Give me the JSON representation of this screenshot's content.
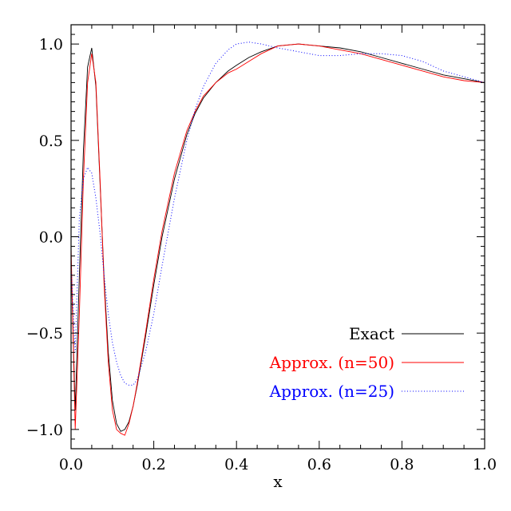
{
  "chart_data": {
    "type": "line",
    "title": "",
    "xlabel": "x",
    "ylabel": "",
    "xlim": [
      0.0,
      1.0
    ],
    "ylim": [
      -1.1,
      1.1
    ],
    "xticks": [
      0.0,
      0.2,
      0.4,
      0.6,
      0.8,
      1.0
    ],
    "xtick_labels": [
      "0.0",
      "0.2",
      "0.4",
      "0.6",
      "0.8",
      "1.0"
    ],
    "yticks": [
      -1.0,
      -0.5,
      0.0,
      0.5,
      1.0
    ],
    "ytick_labels": [
      "−1.0",
      "−0.5",
      "0.0",
      "0.5",
      "1.0"
    ],
    "grid": false,
    "legend_position": "bottom-right",
    "series": [
      {
        "name": "Exact",
        "color": "#000000",
        "style": "solid",
        "x": [
          0.0,
          0.01,
          0.02,
          0.03,
          0.04,
          0.05,
          0.06,
          0.07,
          0.08,
          0.09,
          0.1,
          0.11,
          0.12,
          0.13,
          0.14,
          0.15,
          0.16,
          0.18,
          0.2,
          0.22,
          0.25,
          0.28,
          0.3,
          0.32,
          0.35,
          0.38,
          0.4,
          0.43,
          0.46,
          0.5,
          0.55,
          0.6,
          0.65,
          0.7,
          0.75,
          0.8,
          0.85,
          0.9,
          0.95,
          1.0
        ],
        "y": [
          -0.12,
          -0.9,
          -0.2,
          0.45,
          0.88,
          0.98,
          0.78,
          0.28,
          -0.22,
          -0.6,
          -0.85,
          -0.97,
          -1.01,
          -1.0,
          -0.96,
          -0.88,
          -0.77,
          -0.52,
          -0.25,
          0.0,
          0.3,
          0.53,
          0.64,
          0.72,
          0.8,
          0.86,
          0.89,
          0.93,
          0.96,
          0.99,
          1.0,
          0.99,
          0.98,
          0.96,
          0.93,
          0.9,
          0.87,
          0.84,
          0.82,
          0.8
        ]
      },
      {
        "name": "Approx. (n=50)",
        "color": "#ff0000",
        "style": "solid",
        "x": [
          0.0,
          0.01,
          0.02,
          0.03,
          0.04,
          0.05,
          0.06,
          0.07,
          0.08,
          0.09,
          0.1,
          0.11,
          0.12,
          0.13,
          0.14,
          0.15,
          0.16,
          0.18,
          0.2,
          0.22,
          0.25,
          0.28,
          0.3,
          0.32,
          0.35,
          0.38,
          0.4,
          0.43,
          0.46,
          0.5,
          0.55,
          0.6,
          0.65,
          0.7,
          0.75,
          0.8,
          0.85,
          0.9,
          0.95,
          1.0
        ],
        "y": [
          -0.05,
          -1.0,
          -0.4,
          0.3,
          0.8,
          0.95,
          0.8,
          0.3,
          -0.25,
          -0.65,
          -0.9,
          -1.0,
          -1.02,
          -1.03,
          -0.97,
          -0.88,
          -0.76,
          -0.5,
          -0.22,
          0.03,
          0.33,
          0.55,
          0.65,
          0.73,
          0.8,
          0.85,
          0.87,
          0.91,
          0.95,
          0.99,
          1.0,
          0.99,
          0.97,
          0.95,
          0.92,
          0.89,
          0.86,
          0.83,
          0.81,
          0.8
        ]
      },
      {
        "name": "Approx. (n=25)",
        "color": "#0000ff",
        "style": "dotted",
        "x": [
          0.0,
          0.01,
          0.02,
          0.03,
          0.04,
          0.05,
          0.06,
          0.07,
          0.08,
          0.09,
          0.1,
          0.11,
          0.12,
          0.13,
          0.14,
          0.15,
          0.16,
          0.18,
          0.2,
          0.22,
          0.25,
          0.28,
          0.3,
          0.32,
          0.35,
          0.38,
          0.4,
          0.43,
          0.46,
          0.5,
          0.55,
          0.6,
          0.65,
          0.7,
          0.75,
          0.8,
          0.85,
          0.9,
          0.95,
          1.0
        ],
        "y": [
          -0.15,
          -0.6,
          0.1,
          0.3,
          0.36,
          0.33,
          0.2,
          0.02,
          -0.2,
          -0.4,
          -0.55,
          -0.65,
          -0.72,
          -0.76,
          -0.77,
          -0.77,
          -0.74,
          -0.6,
          -0.4,
          -0.15,
          0.2,
          0.5,
          0.66,
          0.78,
          0.9,
          0.97,
          1.0,
          1.01,
          1.0,
          0.98,
          0.96,
          0.94,
          0.94,
          0.95,
          0.95,
          0.94,
          0.91,
          0.86,
          0.83,
          0.8
        ]
      }
    ]
  }
}
